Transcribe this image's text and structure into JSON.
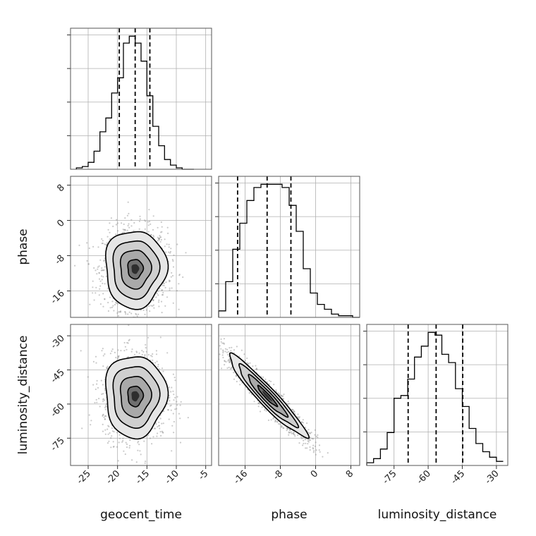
{
  "chart_data": {
    "type": "corner",
    "parameters": [
      "geocent_time",
      "phase",
      "luminosity_distance"
    ],
    "xlabels": [
      "geocent_time",
      "phase",
      "luminosity_distance"
    ],
    "ylabels": [
      "",
      "phase",
      "luminosity_distance"
    ],
    "ranges": {
      "geocent_time": [
        -28,
        -4
      ],
      "phase": [
        -22,
        10
      ],
      "luminosity_distance": [
        -87,
        -25
      ]
    },
    "ticks": {
      "geocent_time": [
        "-25",
        "-20",
        "-15",
        "-10",
        "-5"
      ],
      "phase": [
        "-16",
        "-8",
        "0",
        "8"
      ],
      "luminosity_distance": [
        "-75",
        "-60",
        "-45",
        "-30"
      ]
    },
    "tick_values": {
      "geocent_time": [
        -25,
        -20,
        -15,
        -10,
        -5
      ],
      "phase": [
        -16,
        -8,
        0,
        8
      ],
      "luminosity_distance": [
        -75,
        -60,
        -45,
        -30
      ]
    },
    "histograms": {
      "geocent_time": {
        "bin_edges": [
          -27,
          -26,
          -25,
          -24,
          -23,
          -22,
          -21,
          -20,
          -19,
          -18,
          -17,
          -16,
          -15,
          -14,
          -13,
          -12,
          -11,
          -10,
          -9,
          -8,
          -7
        ],
        "counts": [
          1,
          2,
          5,
          13,
          27,
          37,
          55,
          66,
          91,
          96,
          91,
          78,
          53,
          31,
          17,
          7,
          3,
          1,
          0,
          0
        ],
        "quantiles": [
          -19.7,
          -17.0,
          -14.5
        ]
      },
      "phase": {
        "bin_edges": [
          -22,
          -20.4,
          -18.8,
          -17.2,
          -15.6,
          -14,
          -12.4,
          -10.8,
          -9.2,
          -7.6,
          -6,
          -4.4,
          -2.8,
          -1.2,
          0.4,
          2,
          3.6,
          5.2,
          6.8,
          8.4,
          10
        ],
        "counts": [
          4,
          22,
          42,
          58,
          72,
          80,
          82,
          82,
          82,
          80,
          69,
          53,
          30,
          15,
          8,
          5,
          2,
          1,
          1,
          0
        ],
        "quantiles": [
          -17.7,
          -11.0,
          -5.6
        ]
      },
      "luminosity_distance": {
        "bin_edges": [
          -87,
          -84,
          -81,
          -78,
          -75,
          -72,
          -69,
          -66,
          -63,
          -60,
          -57,
          -54,
          -51,
          -48,
          -45,
          -42,
          -39,
          -36,
          -33,
          -30,
          -27
        ],
        "counts": [
          2,
          5,
          12,
          24,
          49,
          51,
          63,
          79,
          87,
          97,
          95,
          81,
          75,
          56,
          43,
          27,
          16,
          10,
          6,
          3
        ],
        "quantiles": [
          -68.8,
          -56.5,
          -44.8
        ]
      }
    },
    "pairs": [
      {
        "x": "geocent_time",
        "y": "phase",
        "center": [
          -17.0,
          -11.0
        ],
        "sigma": [
          2.6,
          4.4
        ],
        "rho": 0.0,
        "contour_levels_sigma": [
          0.5,
          1.0,
          1.5,
          2.0
        ]
      },
      {
        "x": "geocent_time",
        "y": "luminosity_distance",
        "center": [
          -17.0,
          -56.5
        ],
        "sigma": [
          2.6,
          9.0
        ],
        "rho": 0.0,
        "contour_levels_sigma": [
          0.5,
          1.0,
          1.5,
          2.0
        ]
      },
      {
        "x": "phase",
        "y": "luminosity_distance",
        "center": [
          -11.0,
          -56.5
        ],
        "sigma": [
          4.4,
          9.0
        ],
        "rho": -0.95,
        "contour_levels_sigma": [
          0.5,
          1.0,
          1.5,
          2.0
        ]
      }
    ],
    "grid": true,
    "quantile_line_style": "dashed"
  }
}
